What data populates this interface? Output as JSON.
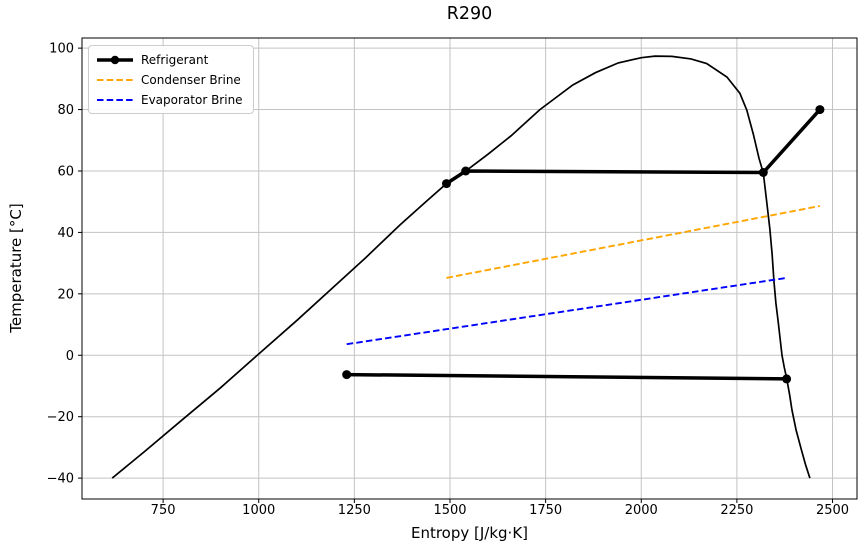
{
  "chart_data": {
    "type": "line",
    "title": "R290",
    "xlabel": "Entropy [J/kg·K]",
    "ylabel": "Temperature [°C]",
    "xlim": [
      538,
      2564
    ],
    "ylim": [
      -46.8,
      103.3
    ],
    "xticks": [
      750,
      1000,
      1250,
      1500,
      1750,
      2000,
      2250,
      2500
    ],
    "yticks": [
      -40,
      -20,
      0,
      20,
      40,
      60,
      80,
      100
    ],
    "grid": true,
    "grid_color": "#c3c3c3",
    "legend_position": "upper left",
    "series": [
      {
        "name": "Saturation Dome",
        "in_legend": false,
        "color": "#000000",
        "style": "solid",
        "width": 1.7,
        "markers": false,
        "segments": [
          [
            [
              617,
              -40
            ],
            [
              700,
              -31.5
            ],
            [
              800,
              -21
            ],
            [
              900,
              -10.6
            ],
            [
              1000,
              0.4
            ],
            [
              1100,
              11.4
            ],
            [
              1200,
              22.7
            ],
            [
              1280,
              31.8
            ],
            [
              1369,
              42.4
            ],
            [
              1440,
              50.3
            ],
            [
              1491,
              55.9
            ],
            [
              1541,
              60
            ],
            [
              1600,
              65.5
            ],
            [
              1660,
              71.5
            ],
            [
              1735,
              80
            ],
            [
              1821,
              88
            ],
            [
              1880,
              92
            ],
            [
              1940,
              95.2
            ],
            [
              2000,
              96.9
            ],
            [
              2036,
              97.4
            ],
            [
              2080,
              97.3
            ],
            [
              2130,
              96.5
            ],
            [
              2171,
              95
            ],
            [
              2224,
              90.6
            ],
            [
              2258,
              85.3
            ],
            [
              2276,
              79.8
            ],
            [
              2293,
              72
            ],
            [
              2308,
              64
            ],
            [
              2319,
              59.4
            ],
            [
              2328,
              50
            ],
            [
              2336,
              41.3
            ],
            [
              2342,
              33
            ],
            [
              2347,
              23.9
            ],
            [
              2352,
              17
            ],
            [
              2358,
              10.9
            ],
            [
              2368,
              0
            ],
            [
              2374,
              -4
            ],
            [
              2380,
              -7.4
            ],
            [
              2388,
              -13
            ],
            [
              2394,
              -17.9
            ],
            [
              2405,
              -24.5
            ],
            [
              2419,
              -30.9
            ],
            [
              2430,
              -35.8
            ],
            [
              2441,
              -40
            ]
          ]
        ]
      },
      {
        "name": "Refrigerant",
        "in_legend": true,
        "color": "#000000",
        "style": "solid",
        "width": 3.5,
        "markers": true,
        "marker_size": 4.5,
        "segments": [
          [
            [
              1230,
              -6.3
            ],
            [
              2380,
              -7.7
            ]
          ],
          [
            [
              2467,
              80
            ],
            [
              2319,
              59.5
            ],
            [
              1541,
              60
            ],
            [
              1491,
              55.9
            ]
          ]
        ]
      },
      {
        "name": "Condenser Brine",
        "in_legend": true,
        "color": "#FFA500",
        "style": "dashed",
        "width": 1.9,
        "markers": false,
        "segments": [
          [
            [
              1491,
              25.2
            ],
            [
              2467,
              48.6
            ]
          ]
        ]
      },
      {
        "name": "Evaporator Brine",
        "in_legend": true,
        "color": "#0000FF",
        "style": "dashed",
        "width": 1.9,
        "markers": false,
        "segments": [
          [
            [
              1230,
              3.6
            ],
            [
              2380,
              25.2
            ]
          ]
        ]
      }
    ]
  }
}
